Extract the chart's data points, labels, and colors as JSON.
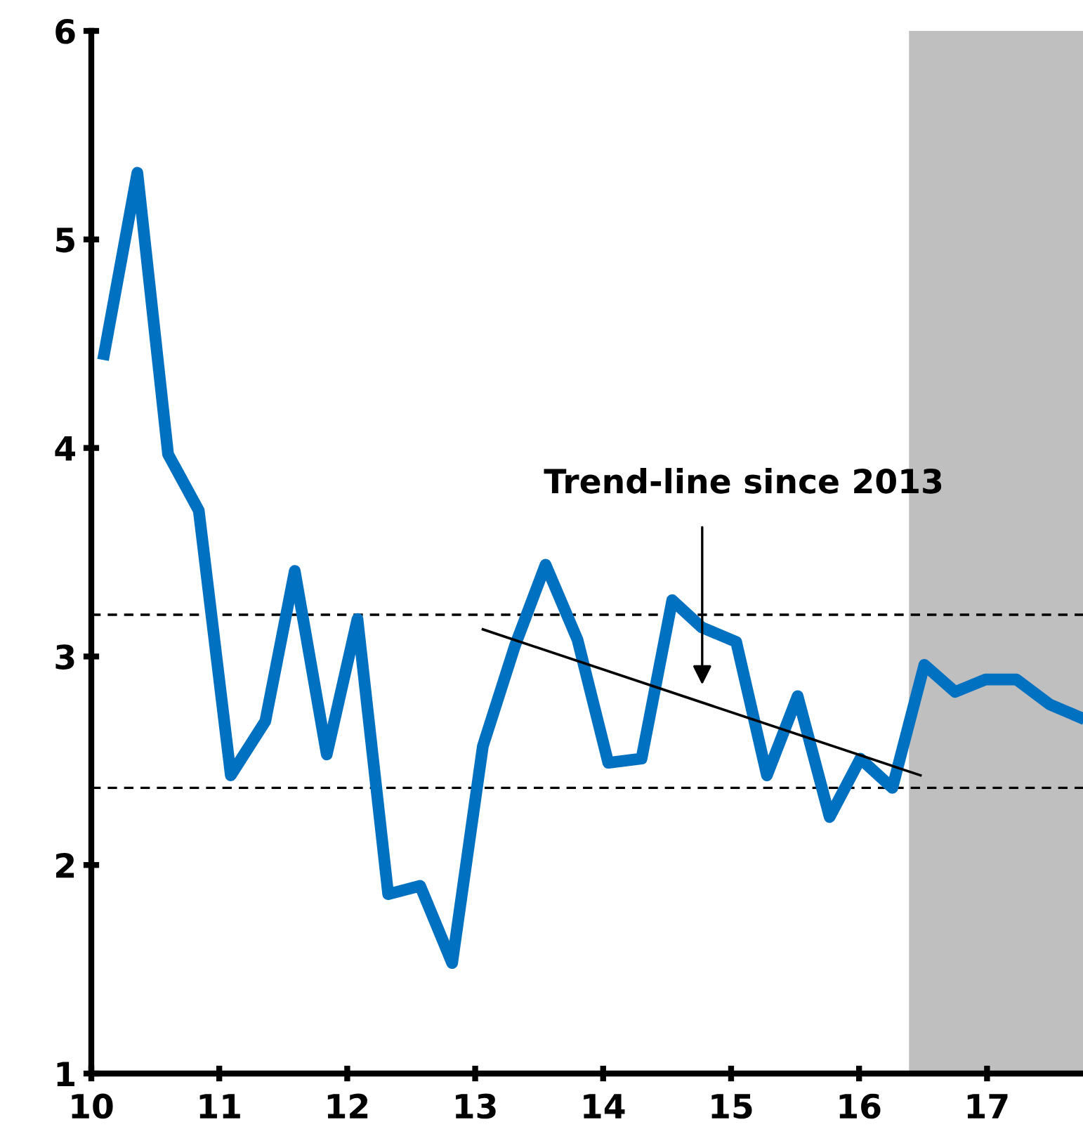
{
  "chart_data": {
    "type": "line",
    "xlim": [
      10,
      17.75
    ],
    "xticks": [
      10,
      11,
      12,
      13,
      14,
      15,
      16,
      17
    ],
    "ylim": [
      1,
      6
    ],
    "yticks": [
      1,
      2,
      3,
      4,
      5,
      6
    ],
    "grid": false,
    "legend": false,
    "series": [
      {
        "color": "#0070c0",
        "x": [
          10.1,
          10.36,
          10.6,
          10.84,
          11.09,
          11.36,
          11.59,
          11.84,
          12.08,
          12.32,
          12.57,
          12.82,
          13.06,
          13.31,
          13.55,
          13.8,
          14.04,
          14.3,
          14.54,
          14.77,
          15.04,
          15.28,
          15.52,
          15.77,
          16.01,
          16.26,
          16.51,
          16.75,
          16.99,
          17.23,
          17.49,
          17.72
        ],
        "values": [
          4.45,
          5.32,
          3.97,
          3.7,
          2.43,
          2.69,
          3.41,
          2.53,
          3.18,
          1.86,
          1.9,
          1.53,
          2.57,
          3.05,
          3.44,
          3.08,
          2.49,
          2.51,
          3.27,
          3.14,
          3.07,
          2.43,
          2.81,
          2.23,
          2.51,
          2.37,
          2.96,
          2.83,
          2.89,
          2.89,
          2.77,
          2.71
        ]
      },
      {
        "type": "line",
        "color": "#000000",
        "x": [
          13.06,
          16.48
        ],
        "values": [
          3.13,
          2.43
        ]
      }
    ],
    "ref_lines": [
      {
        "axis": "y",
        "value": 3.2,
        "line_style": "dashed",
        "color": "#000000"
      },
      {
        "axis": "y",
        "value": 2.37,
        "line_style": "dashed",
        "color": "#000000"
      }
    ],
    "bands": [
      {
        "axis": "x",
        "from": 16.39,
        "to": 17.75,
        "color": "#bfbfbf"
      }
    ],
    "annotations": [
      "Trend-line since 2013"
    ]
  }
}
